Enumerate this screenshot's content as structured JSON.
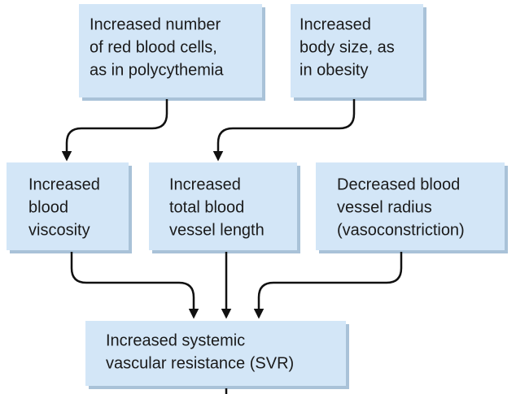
{
  "nodes": [
    {
      "lines": [
        "Increased number",
        "of red blood cells,",
        "as in polycythemia"
      ]
    },
    {
      "lines": [
        "Increased",
        "body size, as",
        "in obesity"
      ]
    },
    {
      "lines": [
        "Increased",
        "blood",
        "viscosity"
      ]
    },
    {
      "lines": [
        "Increased",
        "total blood",
        "vessel length"
      ]
    },
    {
      "lines": [
        "Decreased blood",
        "vessel radius",
        "(vasoconstriction)"
      ]
    },
    {
      "lines": [
        "Increased systemic",
        "vascular resistance (SVR)"
      ]
    }
  ]
}
